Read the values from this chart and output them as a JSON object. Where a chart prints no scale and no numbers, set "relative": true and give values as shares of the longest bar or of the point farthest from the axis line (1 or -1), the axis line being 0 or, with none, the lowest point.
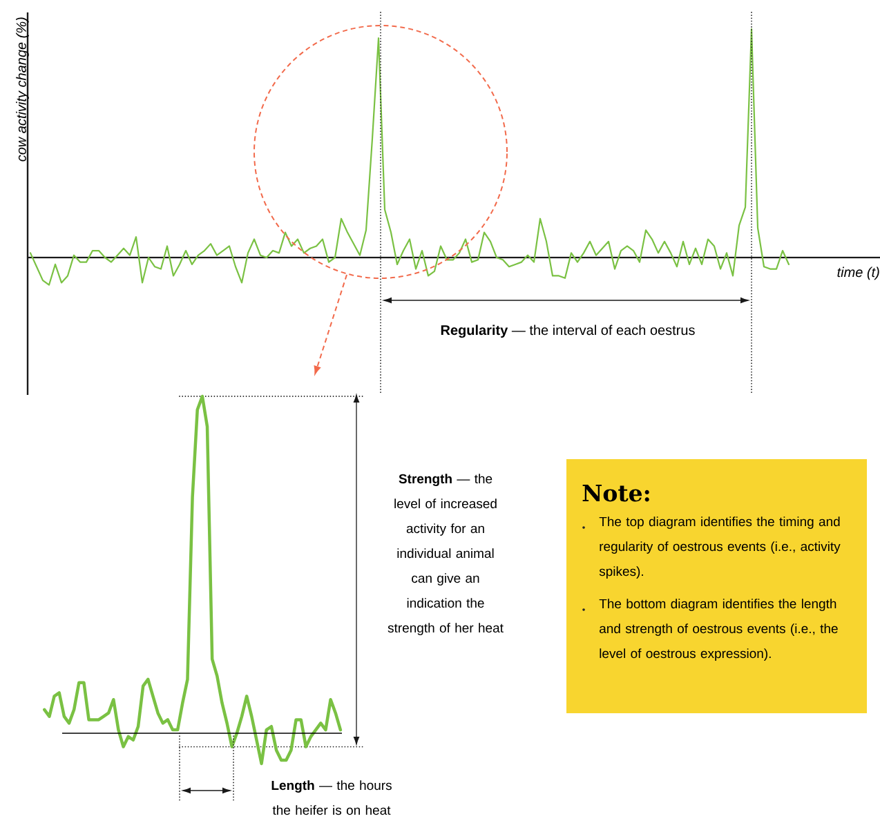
{
  "chart_data": [
    {
      "type": "line",
      "relative": true,
      "xlabel": "time (t)",
      "ylabel": "cow activity change (%)",
      "color": "#7ac143",
      "categories": [
        null,
        null,
        null,
        null,
        null,
        null,
        null,
        null,
        null,
        null,
        null,
        null,
        null,
        null,
        null,
        null,
        null,
        null,
        null,
        null,
        null,
        null,
        null,
        null,
        null,
        null,
        null,
        null,
        null,
        null,
        null,
        null,
        null,
        null,
        null,
        null,
        null,
        null,
        null,
        null,
        null,
        null,
        null,
        null,
        null,
        null,
        null,
        null,
        null,
        null,
        null,
        null,
        null,
        null,
        null,
        null,
        null,
        null,
        null,
        null,
        null,
        null,
        null,
        null,
        null,
        null,
        null,
        null,
        null,
        null,
        null,
        null,
        null,
        null,
        null,
        null,
        null,
        null,
        null,
        null,
        null,
        null,
        null,
        null,
        null,
        null,
        null,
        null,
        null,
        null,
        null,
        null,
        null,
        null,
        null,
        null,
        null,
        null,
        null,
        null,
        null,
        null,
        null,
        null,
        null,
        null,
        null,
        null,
        null,
        null,
        null,
        null,
        null,
        null,
        null,
        null,
        null,
        null,
        null,
        null,
        null,
        null,
        null
      ],
      "values": [
        0.02,
        -0.04,
        -0.1,
        -0.12,
        -0.03,
        -0.11,
        -0.08,
        0.01,
        -0.02,
        -0.02,
        0.03,
        0.03,
        0.0,
        -0.02,
        0.01,
        0.04,
        0.01,
        0.09,
        -0.11,
        0.0,
        -0.04,
        -0.05,
        0.05,
        -0.08,
        -0.03,
        0.03,
        -0.03,
        0.01,
        0.03,
        0.06,
        0.01,
        0.03,
        0.05,
        -0.04,
        -0.11,
        0.02,
        0.08,
        0.01,
        0.0,
        0.03,
        0.02,
        0.11,
        0.05,
        0.08,
        0.02,
        0.04,
        0.05,
        0.08,
        -0.02,
        0.0,
        0.17,
        0.11,
        0.06,
        0.01,
        0.12,
        0.52,
        0.96,
        0.21,
        0.11,
        -0.03,
        0.03,
        0.08,
        -0.05,
        0.03,
        -0.08,
        -0.06,
        0.05,
        -0.01,
        -0.01,
        0.02,
        0.08,
        -0.02,
        -0.01,
        0.11,
        0.07,
        0.0,
        -0.01,
        -0.04,
        -0.03,
        -0.02,
        0.01,
        -0.02,
        0.17,
        0.07,
        -0.08,
        -0.08,
        -0.09,
        0.02,
        -0.02,
        0.02,
        0.07,
        0.01,
        0.04,
        0.07,
        -0.05,
        0.03,
        0.05,
        0.03,
        -0.02,
        0.12,
        0.08,
        0.02,
        0.07,
        0.02,
        -0.04,
        0.07,
        -0.03,
        0.04,
        -0.03,
        0.08,
        0.05,
        -0.05,
        0.02,
        -0.08,
        0.14,
        0.22,
        1.0,
        0.13,
        -0.04,
        -0.05,
        -0.05,
        0.03,
        -0.03
      ],
      "annotations": [
        "**Regularity** — the interval of each oestrus"
      ]
    },
    {
      "type": "line",
      "relative": true,
      "color": "#7ac143",
      "categories": [
        null,
        null,
        null,
        null,
        null,
        null,
        null,
        null,
        null,
        null,
        null,
        null,
        null,
        null,
        null,
        null,
        null,
        null,
        null,
        null,
        null,
        null,
        null,
        null,
        null,
        null,
        null,
        null,
        null,
        null,
        null,
        null,
        null,
        null,
        null,
        null,
        null,
        null,
        null,
        null,
        null,
        null,
        null,
        null,
        null,
        null,
        null,
        null,
        null,
        null,
        null,
        null,
        null,
        null,
        null,
        null,
        null,
        null,
        null,
        null,
        null
      ],
      "values": [
        0.07,
        0.05,
        0.11,
        0.12,
        0.05,
        0.03,
        0.07,
        0.15,
        0.15,
        0.04,
        0.04,
        0.04,
        0.05,
        0.06,
        0.1,
        0.01,
        -0.04,
        -0.01,
        -0.02,
        0.02,
        0.14,
        0.16,
        0.11,
        0.06,
        0.03,
        0.04,
        0.01,
        0.01,
        0.09,
        0.16,
        0.7,
        0.96,
        1.0,
        0.91,
        0.22,
        0.17,
        0.09,
        0.03,
        -0.04,
        0.0,
        0.05,
        0.11,
        0.05,
        -0.02,
        -0.09,
        0.01,
        0.02,
        -0.05,
        -0.08,
        -0.08,
        -0.05,
        0.04,
        0.04,
        -0.04,
        -0.01,
        0.01,
        0.03,
        0.01,
        0.1,
        0.06,
        0.01
      ],
      "ref_lines": [
        {
          "axis": "y",
          "value": 1.0,
          "line_style": "dotted"
        },
        {
          "axis": "y",
          "value": -0.04,
          "line_style": "dotted"
        }
      ],
      "annotations": [
        "**Strength** — the level of increased activity for an individual animal can give an indication the strength of her heat",
        "**Length** — the hours the heifer is on heat"
      ]
    },
    {
      "type": "other",
      "title": "Note:",
      "annotations": [
        "The top diagram identifies the timing and regularity of oestrous events (i.e., activity spikes).",
        "The bottom diagram identifies the length and strength of oestrous events (i.e., the level of oestrous expression)."
      ]
    }
  ]
}
